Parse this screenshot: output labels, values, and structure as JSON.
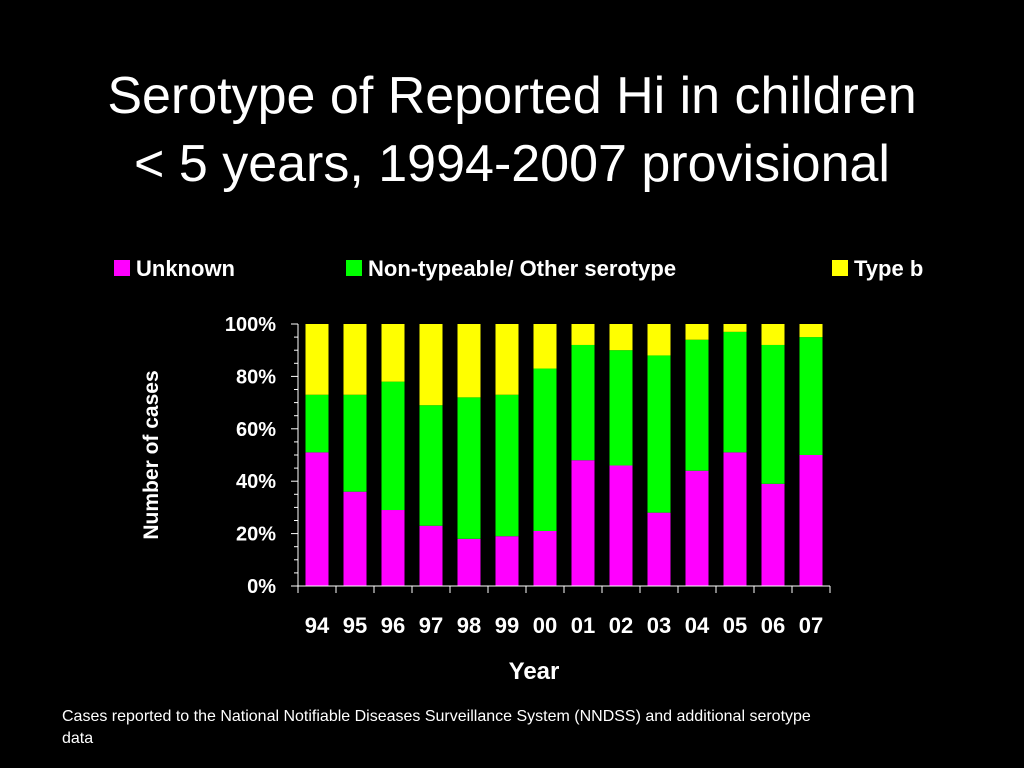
{
  "title": {
    "line1": "Serotype of Reported Hi in children",
    "line2": "< 5 years, 1994-2007 provisional"
  },
  "footnote": "Cases reported to the National Notifiable Diseases Surveillance System (NNDSS) and additional serotype data",
  "colors": {
    "background": "#000000",
    "text": "#ffffff",
    "unknown": "#ff00ff",
    "nontypeable": "#00ff00",
    "typeb": "#ffff00"
  },
  "chart_data": {
    "type": "bar",
    "stacked": true,
    "percent": true,
    "xlabel": "Year",
    "ylabel": "Number of cases",
    "ylim": [
      0,
      100
    ],
    "yticks": [
      "0%",
      "20%",
      "40%",
      "60%",
      "80%",
      "100%"
    ],
    "legend_position": "top",
    "categories": [
      "94",
      "95",
      "96",
      "97",
      "98",
      "99",
      "00",
      "01",
      "02",
      "03",
      "04",
      "05",
      "06",
      "07"
    ],
    "series": [
      {
        "name": "Unknown",
        "color": "#ff00ff",
        "values": [
          51,
          36,
          29,
          23,
          18,
          19,
          21,
          48,
          46,
          28,
          44,
          51,
          39,
          50
        ]
      },
      {
        "name": "Non-typeable/ Other serotype",
        "color": "#00ff00",
        "values": [
          22,
          37,
          49,
          46,
          54,
          54,
          62,
          44,
          44,
          60,
          50,
          46,
          53,
          45
        ]
      },
      {
        "name": "Type b",
        "color": "#ffff00",
        "values": [
          27,
          27,
          22,
          31,
          28,
          27,
          17,
          8,
          10,
          12,
          6,
          3,
          8,
          5
        ]
      }
    ]
  }
}
